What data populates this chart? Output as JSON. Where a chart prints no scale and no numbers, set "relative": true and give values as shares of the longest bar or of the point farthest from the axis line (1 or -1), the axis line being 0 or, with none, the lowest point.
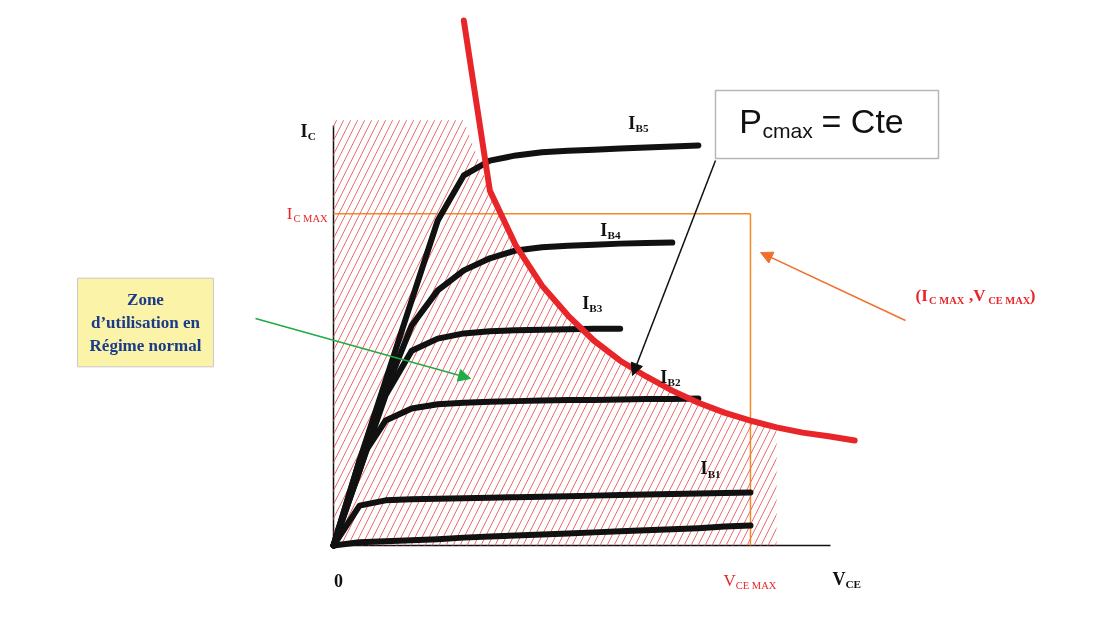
{
  "chart_data": {
    "type": "line",
    "relative": true,
    "xlabel": "V$_{CE}$",
    "ylabel": "I$_{C}$",
    "categories": [
      null,
      null,
      null,
      null,
      null,
      null,
      null,
      null,
      null,
      null,
      null,
      null,
      null,
      null,
      null,
      null,
      null,
      null,
      null,
      null,
      null
    ],
    "series": [
      {
        "type": "area",
        "color": "#ef6b6b",
        "values": [
          0.81,
          0.81,
          0.81,
          0.81,
          0.81,
          0.81,
          0.676,
          0.571,
          0.495,
          0.438,
          0.39,
          0.352,
          0.322,
          0.295,
          0.272,
          0.253,
          0.238,
          0.225,
          null,
          null,
          null
        ]
      },
      {
        "color": "#111111",
        "values": [
          0,
          0.006,
          0.008,
          0.01,
          0.012,
          0.015,
          0.017,
          0.019,
          0.021,
          0.023,
          0.025,
          0.027,
          0.029,
          0.031,
          0.033,
          0.036,
          0.038,
          null,
          null,
          null,
          null
        ]
      },
      {
        "name": "I$_{B1}$",
        "color": "#111111",
        "values": [
          0,
          0.076,
          0.086,
          0.088,
          0.089,
          0.09,
          0.091,
          0.092,
          0.093,
          0.094,
          0.095,
          0.096,
          0.097,
          0.098,
          0.099,
          0.1,
          0.101,
          null,
          null,
          null,
          null
        ]
      },
      {
        "name": "I$_{B2}$",
        "color": "#111111",
        "values": [
          0,
          0.162,
          0.238,
          0.261,
          0.269,
          0.272,
          0.274,
          0.275,
          0.276,
          0.277,
          0.277,
          0.278,
          0.279,
          0.279,
          0.28,
          null,
          null,
          null,
          null,
          null,
          null
        ]
      },
      {
        "name": "I$_{B3}$",
        "color": "#111111",
        "values": [
          0,
          0.143,
          0.286,
          0.371,
          0.394,
          0.404,
          0.408,
          0.41,
          0.411,
          0.412,
          0.413,
          0.413,
          null,
          null,
          null,
          null,
          null,
          null,
          null,
          null,
          null
        ]
      },
      {
        "name": "I$_{B4}$",
        "color": "#111111",
        "values": [
          0,
          0.143,
          0.295,
          0.419,
          0.486,
          0.524,
          0.547,
          0.562,
          0.568,
          0.571,
          0.573,
          0.575,
          0.576,
          0.577,
          null,
          null,
          null,
          null,
          null,
          null,
          null
        ]
      },
      {
        "name": "I$_{B5}$",
        "color": "#111111",
        "values": [
          0,
          0.162,
          0.314,
          0.467,
          0.619,
          0.705,
          0.733,
          0.743,
          0.749,
          0.752,
          0.754,
          0.756,
          0.758,
          0.76,
          0.762,
          null,
          null,
          null,
          null,
          null,
          null
        ]
      },
      {
        "color": "#e8262a",
        "values": [
          null,
          null,
          null,
          null,
          null,
          1.0,
          0.676,
          0.571,
          0.495,
          0.438,
          0.39,
          0.352,
          0.322,
          0.295,
          0.272,
          0.253,
          0.238,
          0.225,
          0.215,
          0.208,
          0.2
        ]
      }
    ],
    "ref_lines": [
      {
        "axis": "y",
        "value": 0.632,
        "label": "I$_{C MAX}$",
        "color": "#f08a24"
      }
    ],
    "annotations": [
      "0",
      "Zone d’utilisation en Régime normal",
      "P$_{cmax}$ = Cte",
      "(I$_{C MAX}$ ,V$_{CE MAX}$)",
      "V$_{CE MAX}$"
    ]
  }
}
